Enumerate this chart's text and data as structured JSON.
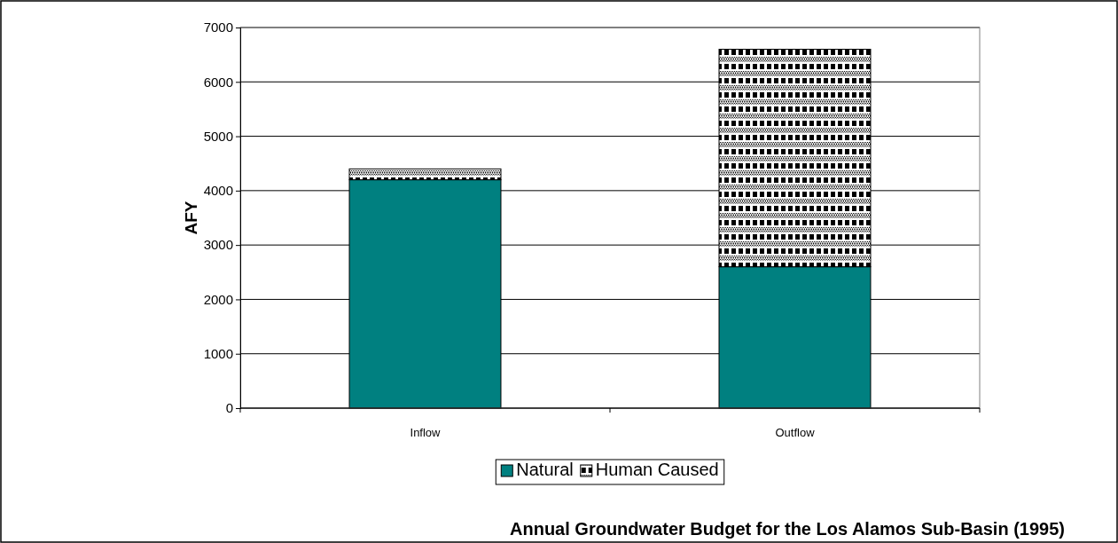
{
  "chart_data": {
    "type": "bar",
    "title": "Annual Groundwater Budget for the Los Alamos Sub-Basin (1995)",
    "ylabel": "AFY",
    "categories": [
      "Inflow",
      "Outflow"
    ],
    "stacked": true,
    "series": [
      {
        "name": "Natural",
        "color": "#008080",
        "values": [
          4200,
          2600
        ]
      },
      {
        "name": "Human Caused",
        "color": "#000000",
        "values": [
          200,
          4000
        ]
      }
    ],
    "ylim": [
      0,
      7000
    ],
    "yticks": [
      0,
      1000,
      2000,
      3000,
      4000,
      5000,
      6000,
      7000
    ],
    "grid": "y",
    "legend": "bottom"
  }
}
